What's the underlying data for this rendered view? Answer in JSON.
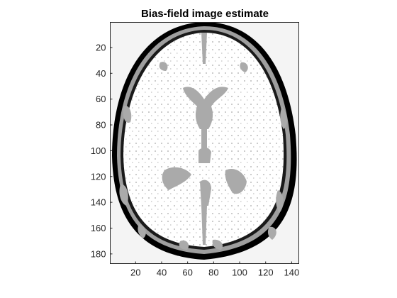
{
  "figure": {
    "title": "Bias-field image estimate"
  },
  "image_axes": {
    "x_range": [
      0.5,
      145.5
    ],
    "y_range": [
      0.5,
      187.5
    ],
    "y_direction": "reverse",
    "x_ticks": [
      "20",
      "40",
      "60",
      "80",
      "100",
      "120",
      "140"
    ],
    "y_ticks": [
      "20",
      "40",
      "60",
      "80",
      "100",
      "120",
      "140",
      "160",
      "180"
    ]
  },
  "image": {
    "content": "grayscale axial brain MRI slice, bias-field estimate (3 intensity levels)",
    "colors": {
      "background": "#f4f4f4",
      "white_matter": "#ffffff",
      "gray_level": "#aaaaaa",
      "outline": "#000000"
    }
  }
}
